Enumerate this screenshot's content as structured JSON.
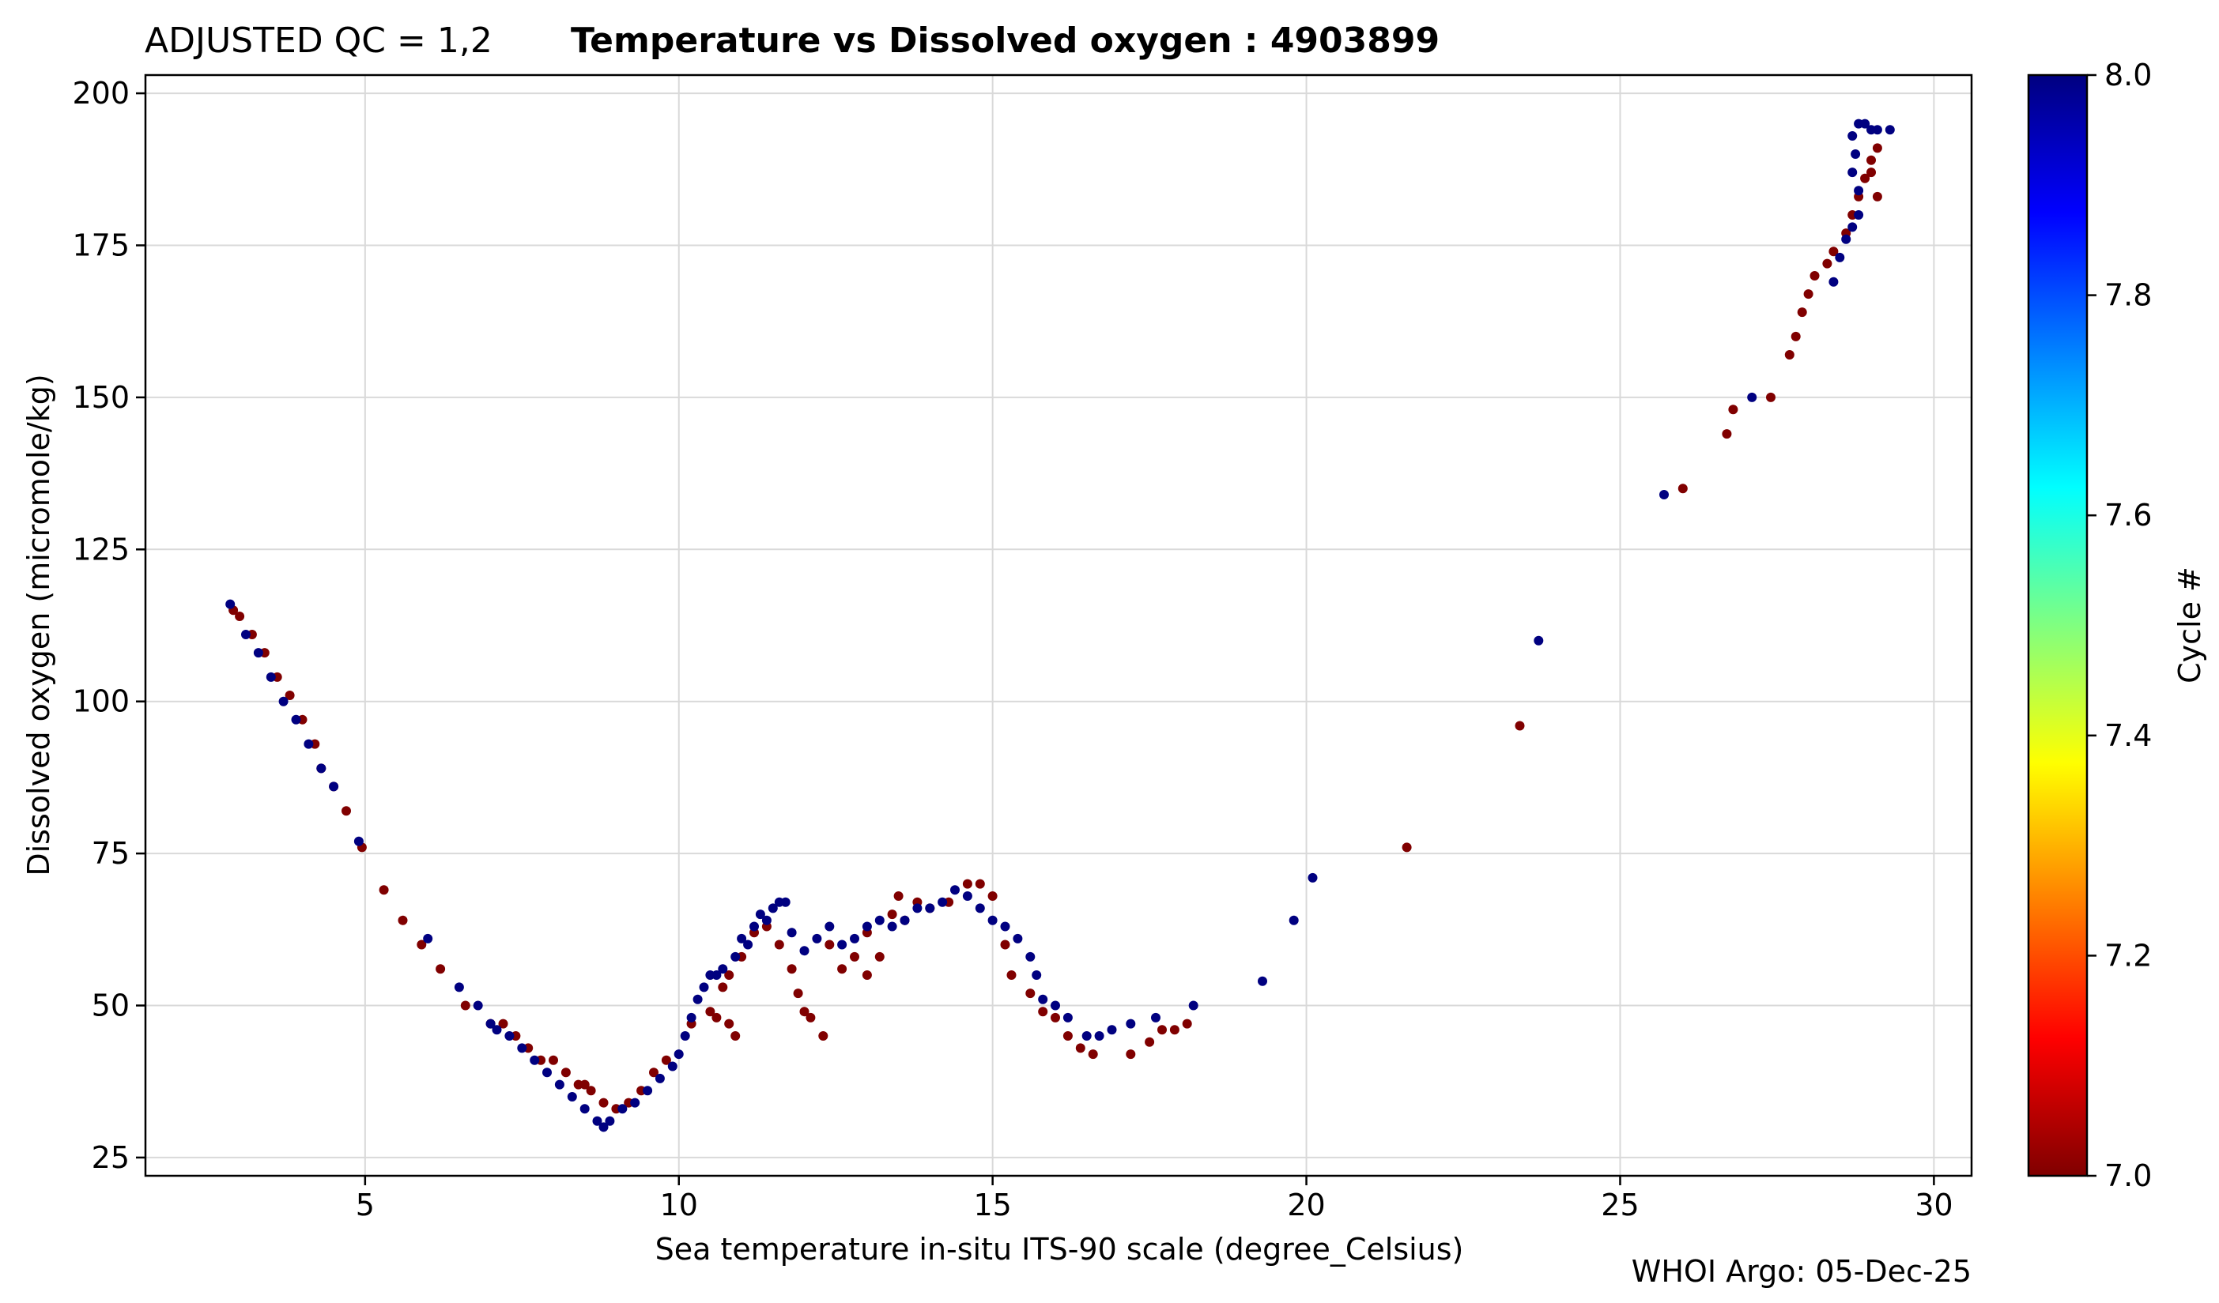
{
  "chart_data": {
    "type": "scatter",
    "title_prefix": "ADJUSTED QC = 1,2",
    "title_main": "Temperature vs Dissolved oxygen : 4903899",
    "xlabel": "Sea temperature in-situ ITS-90 scale  (degree_Celsius)",
    "ylabel": "Dissolved oxygen  (micromole/kg)",
    "xlim": [
      1.5,
      30.6
    ],
    "ylim": [
      22,
      203
    ],
    "xticks": [
      5,
      10,
      15,
      20,
      25,
      30
    ],
    "xtick_labels": [
      "5",
      "10",
      "15",
      "20",
      "25",
      "30"
    ],
    "yticks": [
      25,
      50,
      75,
      100,
      125,
      150,
      175,
      200
    ],
    "ytick_labels": [
      "25",
      "50",
      "75",
      "100",
      "125",
      "150",
      "175",
      "200"
    ],
    "grid": true,
    "colorbar": {
      "label": "Cycle #",
      "range": [
        7.0,
        8.0
      ],
      "ticks": [
        7.0,
        7.2,
        7.4,
        7.6,
        7.8,
        8.0
      ],
      "tick_labels": [
        "7.0",
        "7.2",
        "7.4",
        "7.6",
        "7.8",
        "8.0"
      ],
      "colormap": [
        "#800000",
        "#ff0000",
        "#ff8000",
        "#ffff00",
        "#80ff80",
        "#00ffff",
        "#0080ff",
        "#0000ff",
        "#000080"
      ]
    },
    "series": [
      {
        "name": "Cycle 7",
        "cycle": 7,
        "color": "#800000",
        "points": [
          [
            2.9,
            115
          ],
          [
            3.0,
            114
          ],
          [
            3.2,
            111
          ],
          [
            3.4,
            108
          ],
          [
            3.6,
            104
          ],
          [
            3.8,
            101
          ],
          [
            4.0,
            97
          ],
          [
            4.2,
            93
          ],
          [
            4.3,
            89
          ],
          [
            4.5,
            86
          ],
          [
            4.7,
            82
          ],
          [
            4.95,
            76
          ],
          [
            5.3,
            69
          ],
          [
            5.6,
            64
          ],
          [
            5.9,
            60
          ],
          [
            6.2,
            56
          ],
          [
            6.6,
            50
          ],
          [
            7.0,
            47
          ],
          [
            7.2,
            47
          ],
          [
            7.4,
            45
          ],
          [
            7.6,
            43
          ],
          [
            7.8,
            41
          ],
          [
            8.0,
            41
          ],
          [
            8.2,
            39
          ],
          [
            8.4,
            37
          ],
          [
            8.5,
            37
          ],
          [
            8.6,
            36
          ],
          [
            8.8,
            34
          ],
          [
            9.0,
            33
          ],
          [
            9.2,
            34
          ],
          [
            9.4,
            36
          ],
          [
            9.6,
            39
          ],
          [
            9.8,
            41
          ],
          [
            10.2,
            47
          ],
          [
            10.5,
            49
          ],
          [
            10.6,
            48
          ],
          [
            10.7,
            53
          ],
          [
            10.8,
            55
          ],
          [
            10.8,
            47
          ],
          [
            10.9,
            45
          ],
          [
            11.0,
            58
          ],
          [
            11.2,
            62
          ],
          [
            11.4,
            63
          ],
          [
            11.6,
            60
          ],
          [
            11.8,
            56
          ],
          [
            11.9,
            52
          ],
          [
            12.0,
            49
          ],
          [
            12.1,
            48
          ],
          [
            12.3,
            45
          ],
          [
            12.4,
            60
          ],
          [
            12.6,
            56
          ],
          [
            12.8,
            58
          ],
          [
            13.0,
            62
          ],
          [
            13.0,
            55
          ],
          [
            13.2,
            58
          ],
          [
            13.4,
            65
          ],
          [
            13.5,
            68
          ],
          [
            13.6,
            64
          ],
          [
            13.8,
            67
          ],
          [
            14.0,
            66
          ],
          [
            14.3,
            67
          ],
          [
            14.6,
            70
          ],
          [
            14.8,
            70
          ],
          [
            15.0,
            68
          ],
          [
            15.2,
            60
          ],
          [
            15.3,
            55
          ],
          [
            15.6,
            52
          ],
          [
            15.8,
            49
          ],
          [
            16.0,
            48
          ],
          [
            16.2,
            45
          ],
          [
            16.4,
            43
          ],
          [
            16.6,
            42
          ],
          [
            17.2,
            42
          ],
          [
            17.5,
            44
          ],
          [
            17.7,
            46
          ],
          [
            17.9,
            46
          ],
          [
            18.1,
            47
          ],
          [
            21.6,
            76
          ],
          [
            23.4,
            96
          ],
          [
            26.0,
            135
          ],
          [
            26.7,
            144
          ],
          [
            26.8,
            148
          ],
          [
            27.4,
            150
          ],
          [
            27.7,
            157
          ],
          [
            27.8,
            160
          ],
          [
            27.9,
            164
          ],
          [
            28.0,
            167
          ],
          [
            28.1,
            170
          ],
          [
            28.3,
            172
          ],
          [
            28.4,
            174
          ],
          [
            28.6,
            177
          ],
          [
            28.7,
            180
          ],
          [
            28.8,
            183
          ],
          [
            28.9,
            186
          ],
          [
            29.0,
            189
          ],
          [
            29.1,
            191
          ],
          [
            29.0,
            187
          ],
          [
            29.1,
            183
          ]
        ]
      },
      {
        "name": "Cycle 8",
        "cycle": 8,
        "color": "#000080",
        "points": [
          [
            2.85,
            116
          ],
          [
            3.1,
            111
          ],
          [
            3.3,
            108
          ],
          [
            3.5,
            104
          ],
          [
            3.7,
            100
          ],
          [
            3.9,
            97
          ],
          [
            4.1,
            93
          ],
          [
            4.3,
            89
          ],
          [
            4.5,
            86
          ],
          [
            4.9,
            77
          ],
          [
            6.0,
            61
          ],
          [
            6.5,
            53
          ],
          [
            6.8,
            50
          ],
          [
            7.0,
            47
          ],
          [
            7.1,
            46
          ],
          [
            7.3,
            45
          ],
          [
            7.5,
            43
          ],
          [
            7.7,
            41
          ],
          [
            7.9,
            39
          ],
          [
            8.1,
            37
          ],
          [
            8.3,
            35
          ],
          [
            8.5,
            33
          ],
          [
            8.7,
            31
          ],
          [
            8.8,
            30
          ],
          [
            8.9,
            31
          ],
          [
            9.1,
            33
          ],
          [
            9.3,
            34
          ],
          [
            9.5,
            36
          ],
          [
            9.7,
            38
          ],
          [
            9.9,
            40
          ],
          [
            10.0,
            42
          ],
          [
            10.1,
            45
          ],
          [
            10.2,
            48
          ],
          [
            10.3,
            51
          ],
          [
            10.4,
            53
          ],
          [
            10.5,
            55
          ],
          [
            10.6,
            55
          ],
          [
            10.7,
            56
          ],
          [
            10.9,
            58
          ],
          [
            11.0,
            61
          ],
          [
            11.1,
            60
          ],
          [
            11.2,
            63
          ],
          [
            11.3,
            65
          ],
          [
            11.4,
            64
          ],
          [
            11.5,
            66
          ],
          [
            11.6,
            67
          ],
          [
            11.7,
            67
          ],
          [
            11.8,
            62
          ],
          [
            12.0,
            59
          ],
          [
            12.2,
            61
          ],
          [
            12.4,
            63
          ],
          [
            12.6,
            60
          ],
          [
            12.8,
            61
          ],
          [
            13.0,
            63
          ],
          [
            13.2,
            64
          ],
          [
            13.4,
            63
          ],
          [
            13.6,
            64
          ],
          [
            13.8,
            66
          ],
          [
            14.0,
            66
          ],
          [
            14.2,
            67
          ],
          [
            14.4,
            69
          ],
          [
            14.6,
            68
          ],
          [
            14.8,
            66
          ],
          [
            15.0,
            64
          ],
          [
            15.2,
            63
          ],
          [
            15.4,
            61
          ],
          [
            15.6,
            58
          ],
          [
            15.7,
            55
          ],
          [
            15.8,
            51
          ],
          [
            16.0,
            50
          ],
          [
            16.2,
            48
          ],
          [
            16.5,
            45
          ],
          [
            16.7,
            45
          ],
          [
            16.9,
            46
          ],
          [
            17.2,
            47
          ],
          [
            17.6,
            48
          ],
          [
            18.2,
            50
          ],
          [
            19.3,
            54
          ],
          [
            19.8,
            64
          ],
          [
            20.1,
            71
          ],
          [
            23.7,
            110
          ],
          [
            25.7,
            134
          ],
          [
            27.1,
            150
          ],
          [
            28.4,
            169
          ],
          [
            28.5,
            173
          ],
          [
            28.6,
            176
          ],
          [
            28.7,
            178
          ],
          [
            28.8,
            180
          ],
          [
            28.8,
            184
          ],
          [
            28.7,
            187
          ],
          [
            28.75,
            190
          ],
          [
            28.7,
            193
          ],
          [
            28.8,
            195
          ],
          [
            28.9,
            195
          ],
          [
            29.0,
            194
          ],
          [
            29.1,
            194
          ],
          [
            29.3,
            194
          ]
        ]
      }
    ]
  },
  "footer": "WHOI Argo: 05-Dec-25"
}
